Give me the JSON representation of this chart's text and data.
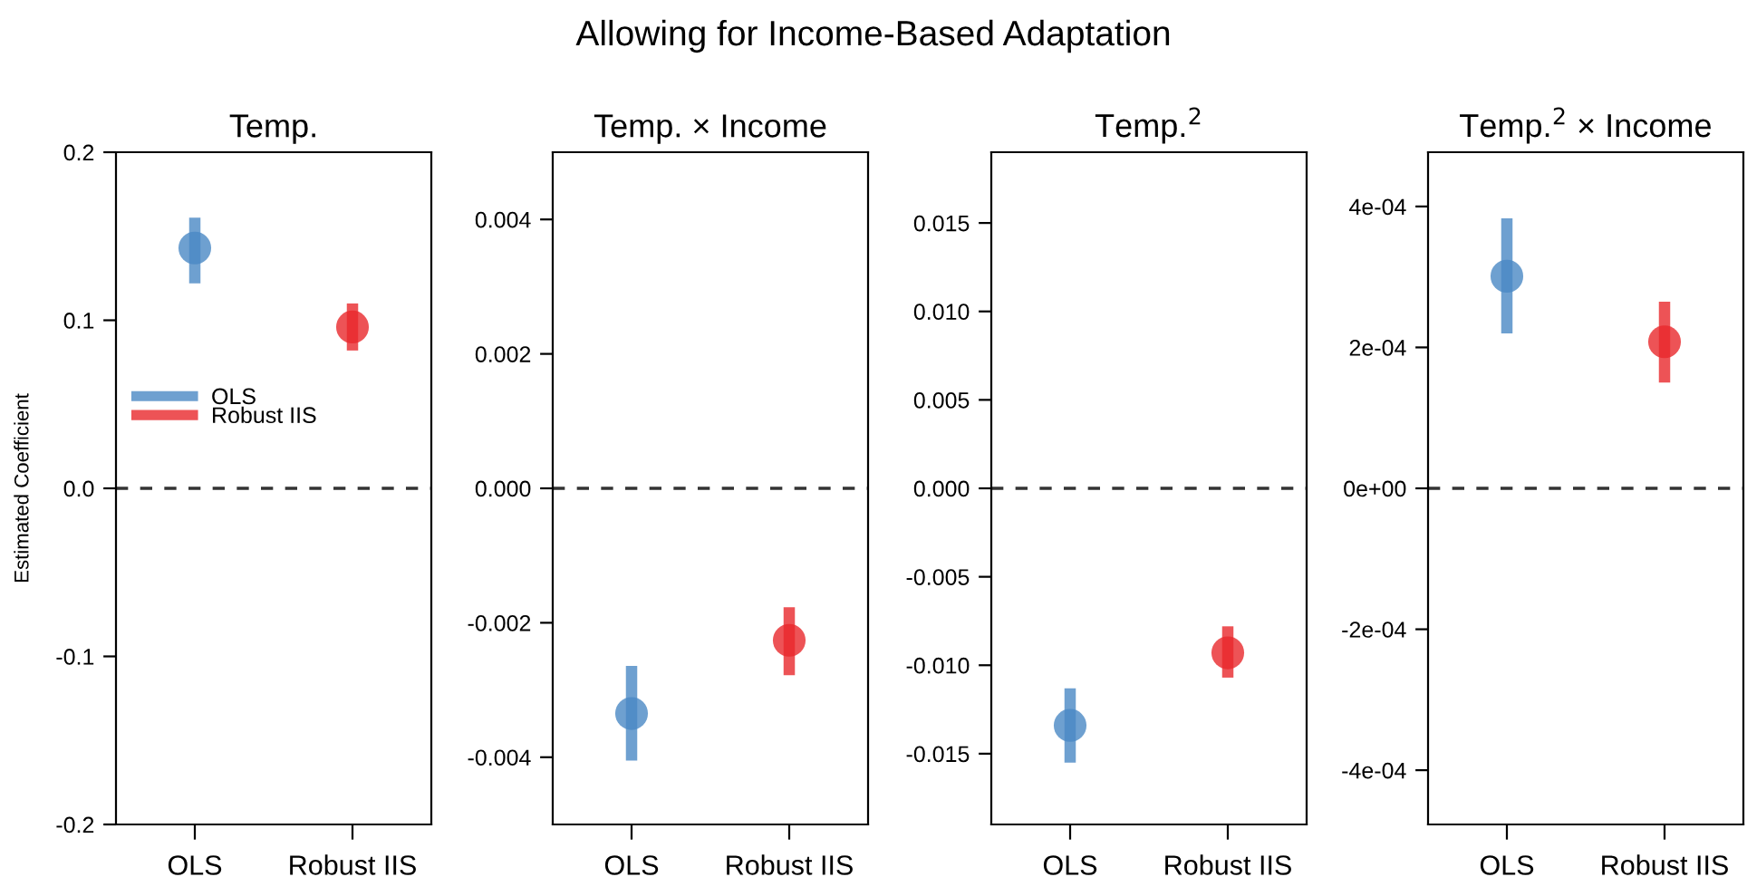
{
  "chart_data": [
    {
      "type": "scatter",
      "title": "Temp.",
      "ylabel": "Estimated Coefficient",
      "annotations": [
        "Allowing for Income-Based Adaptation"
      ],
      "categories": [
        "OLS",
        "Robust IIS"
      ],
      "ylim": [
        -0.2,
        0.2
      ],
      "yticks": [
        {
          "value": -0.2,
          "label": "-0.2"
        },
        {
          "value": -0.1,
          "label": "-0.1"
        },
        {
          "value": 0,
          "label": "0.0"
        },
        0.1,
        0.2
      ],
      "marker": "circle",
      "legend": "left",
      "grid": false,
      "ref_lines": [
        {
          "axis": "y",
          "value": 0,
          "line_style": "dashed",
          "color": "#333333"
        }
      ],
      "series": [
        {
          "name": "OLS",
          "color": "#4a88c4",
          "values": [
            0.143,
            null
          ],
          "errors": [
            [
              0.122,
              0.161
            ],
            null
          ]
        },
        {
          "name": "Robust IIS",
          "color": "#e8282c",
          "values": [
            null,
            0.096
          ],
          "errors": [
            null,
            [
              0.082,
              0.11
            ]
          ]
        }
      ]
    },
    {
      "type": "scatter",
      "title": "Temp. × Income",
      "categories": [
        "OLS",
        "Robust IIS"
      ],
      "ylim": [
        -0.005,
        0.005
      ],
      "yticks": [
        {
          "value": -0.004,
          "label": "-0.004"
        },
        {
          "value": -0.002,
          "label": "-0.002"
        },
        {
          "value": 0,
          "label": "0.000"
        },
        0.002,
        0.004
      ],
      "marker": "circle",
      "grid": false,
      "ref_lines": [
        {
          "axis": "y",
          "value": 0,
          "line_style": "dashed",
          "color": "#333333"
        }
      ],
      "series": [
        {
          "color": "#4a88c4",
          "values": [
            -0.00335,
            null
          ],
          "errors": [
            [
              -0.00405,
              -0.00264
            ],
            null
          ]
        },
        {
          "color": "#e8282c",
          "values": [
            null,
            -0.00226
          ],
          "errors": [
            null,
            [
              -0.00278,
              -0.00177
            ]
          ]
        }
      ]
    },
    {
      "type": "scatter",
      "title": "Temp.$^{2}$",
      "categories": [
        "OLS",
        "Robust IIS"
      ],
      "ylim": [
        -0.019,
        0.019
      ],
      "yticks": [
        {
          "value": -0.015,
          "label": "-0.015"
        },
        {
          "value": -0.01,
          "label": "-0.010"
        },
        {
          "value": -0.005,
          "label": "-0.005"
        },
        {
          "value": 0,
          "label": "0.000"
        },
        0.005,
        {
          "value": 0.01,
          "label": "0.010"
        },
        0.015
      ],
      "marker": "circle",
      "grid": false,
      "ref_lines": [
        {
          "axis": "y",
          "value": 0,
          "line_style": "dashed",
          "color": "#333333"
        }
      ],
      "series": [
        {
          "color": "#4a88c4",
          "values": [
            -0.0134,
            null
          ],
          "errors": [
            [
              -0.0155,
              -0.0113
            ],
            null
          ]
        },
        {
          "color": "#e8282c",
          "values": [
            null,
            -0.0093
          ],
          "errors": [
            null,
            [
              -0.0107,
              -0.0078
            ]
          ]
        }
      ]
    },
    {
      "type": "scatter",
      "title": "Temp.$^{2}$ × Income",
      "categories": [
        "OLS",
        "Robust IIS"
      ],
      "ylim": [
        -0.000477,
        0.000477
      ],
      "yticks": [
        {
          "value": -0.0004,
          "label": "-4e-04"
        },
        {
          "value": -0.0002,
          "label": "-2e-04"
        },
        {
          "value": 0,
          "label": "0e+00"
        },
        {
          "value": 0.0002,
          "label": "2e-04"
        },
        {
          "value": 0.0004,
          "label": "4e-04"
        }
      ],
      "marker": "circle",
      "grid": false,
      "ref_lines": [
        {
          "axis": "y",
          "value": 0,
          "line_style": "dashed",
          "color": "#333333"
        }
      ],
      "series": [
        {
          "color": "#4a88c4",
          "values": [
            0.000301,
            null
          ],
          "errors": [
            [
              0.00022,
              0.000383
            ],
            null
          ]
        },
        {
          "color": "#e8282c",
          "values": [
            null,
            0.000208
          ],
          "errors": [
            null,
            [
              0.00015,
              0.000265
            ]
          ]
        }
      ]
    }
  ]
}
